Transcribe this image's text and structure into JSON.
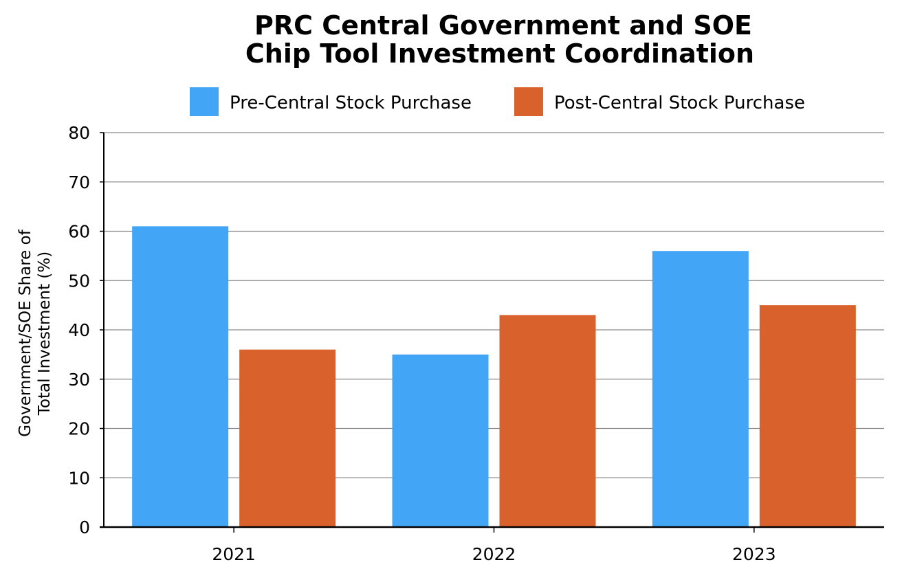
{
  "chart_data": {
    "type": "bar",
    "title_lines": [
      "PRC Central Government and SOE",
      "Chip Tool Investment Coordination"
    ],
    "ylabel_lines": [
      "Government/SOE Share of",
      "Total Investment (%)"
    ],
    "xlabel": "",
    "categories": [
      "2021",
      "2022",
      "2023"
    ],
    "series": [
      {
        "name": "Pre-Central Stock Purchase",
        "color": "#42A5F5",
        "values": [
          61,
          35,
          56
        ]
      },
      {
        "name": "Post-Central Stock Purchase",
        "color": "#D8612C",
        "values": [
          36,
          43,
          45
        ]
      }
    ],
    "ylim": [
      0,
      80
    ],
    "yticks": [
      0,
      10,
      20,
      30,
      40,
      50,
      60,
      70,
      80
    ],
    "grid": true,
    "legend_position": "top"
  }
}
